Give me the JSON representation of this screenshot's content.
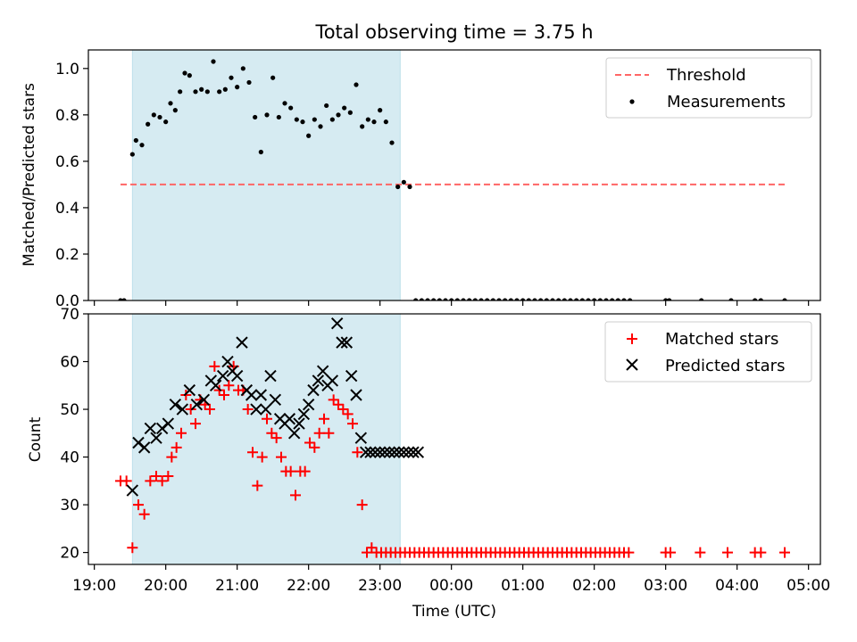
{
  "title": "Total observing time = 3.75 h",
  "chart_data": [
    {
      "type": "scatter",
      "panel": "top",
      "ylabel": "Matched/Predicted stars",
      "ylim": [
        0,
        1.08
      ],
      "yticks": [
        0.0,
        0.2,
        0.4,
        0.6,
        0.8,
        1.0
      ],
      "ytick_labels": [
        "0.0",
        "0.2",
        "0.4",
        "0.6",
        "0.8",
        "1.0"
      ],
      "xlim": [
        "18:55",
        "05:10"
      ],
      "shaded_span": [
        "19:32",
        "23:17"
      ],
      "shade_color": "#add8e6",
      "threshold": {
        "name": "Threshold",
        "value": 0.5,
        "x_start": "19:22",
        "x_end": "04:40",
        "color": "#ff6666"
      },
      "legend": {
        "position": "top-right",
        "entries": [
          "Threshold",
          "Measurements"
        ]
      },
      "series": [
        {
          "name": "Measurements",
          "marker": "dot",
          "color": "#000000",
          "x": [
            "19:22",
            "19:25",
            "19:32",
            "19:35",
            "19:40",
            "19:45",
            "19:50",
            "19:55",
            "20:00",
            "20:04",
            "20:08",
            "20:12",
            "20:16",
            "20:20",
            "20:25",
            "20:30",
            "20:35",
            "20:40",
            "20:45",
            "20:50",
            "20:55",
            "21:00",
            "21:05",
            "21:10",
            "21:15",
            "21:20",
            "21:25",
            "21:30",
            "21:35",
            "21:40",
            "21:45",
            "21:50",
            "21:55",
            "22:00",
            "22:05",
            "22:10",
            "22:15",
            "22:20",
            "22:25",
            "22:30",
            "22:35",
            "22:40",
            "22:45",
            "22:50",
            "22:55",
            "23:00",
            "23:05",
            "23:10",
            "23:15",
            "23:20",
            "23:25",
            "23:30",
            "23:35",
            "23:40",
            "23:45",
            "23:50",
            "23:55",
            "00:00",
            "00:05",
            "00:10",
            "00:15",
            "00:20",
            "00:25",
            "00:30",
            "00:35",
            "00:40",
            "00:45",
            "00:50",
            "00:55",
            "01:00",
            "01:05",
            "01:10",
            "01:15",
            "01:20",
            "01:25",
            "01:30",
            "01:35",
            "01:40",
            "01:45",
            "01:50",
            "01:55",
            "02:00",
            "02:05",
            "02:10",
            "02:15",
            "02:20",
            "02:25",
            "02:30",
            "03:00",
            "03:03",
            "03:30",
            "03:55",
            "04:15",
            "04:20",
            "04:40"
          ],
          "y": [
            0.0,
            0.0,
            0.63,
            0.69,
            0.67,
            0.76,
            0.8,
            0.79,
            0.77,
            0.85,
            0.82,
            0.9,
            0.98,
            0.97,
            0.9,
            0.91,
            0.9,
            1.03,
            0.9,
            0.91,
            0.96,
            0.92,
            1.0,
            0.94,
            0.79,
            0.64,
            0.8,
            0.96,
            0.79,
            0.85,
            0.83,
            0.78,
            0.77,
            0.71,
            0.78,
            0.75,
            0.84,
            0.78,
            0.8,
            0.83,
            0.81,
            0.93,
            0.75,
            0.78,
            0.77,
            0.82,
            0.77,
            0.68,
            0.49,
            0.51,
            0.49,
            0.0,
            0.0,
            0.0,
            0.0,
            0.0,
            0.0,
            0.0,
            0.0,
            0.0,
            0.0,
            0.0,
            0.0,
            0.0,
            0.0,
            0.0,
            0.0,
            0.0,
            0.0,
            0.0,
            0.0,
            0.0,
            0.0,
            0.0,
            0.0,
            0.0,
            0.0,
            0.0,
            0.0,
            0.0,
            0.0,
            0.0,
            0.0,
            0.0,
            0.0,
            0.0,
            0.0,
            0.0,
            0.0,
            0.0,
            0.0,
            0.0,
            0.0,
            0.0,
            0.0
          ]
        }
      ]
    },
    {
      "type": "scatter",
      "panel": "bottom",
      "xlabel": "Time (UTC)",
      "ylabel": "Count",
      "ylim": [
        17.5,
        70
      ],
      "yticks": [
        20,
        30,
        40,
        50,
        60,
        70
      ],
      "ytick_labels": [
        "20",
        "30",
        "40",
        "50",
        "60",
        "70"
      ],
      "xlim": [
        "18:55",
        "05:10"
      ],
      "xticks": [
        "19:00",
        "20:00",
        "21:00",
        "22:00",
        "23:00",
        "00:00",
        "01:00",
        "02:00",
        "03:00",
        "04:00",
        "05:00"
      ],
      "xtick_labels": [
        "19:00",
        "20:00",
        "21:00",
        "22:00",
        "23:00",
        "00:00",
        "01:00",
        "02:00",
        "03:00",
        "04:00",
        "05:00"
      ],
      "shaded_span": [
        "19:32",
        "23:17"
      ],
      "shade_color": "#add8e6",
      "legend": {
        "position": "top-right",
        "entries": [
          "Matched stars",
          "Predicted stars"
        ]
      },
      "series": [
        {
          "name": "Matched stars",
          "marker": "plus",
          "color": "#ff0000",
          "x": [
            "19:22",
            "19:27",
            "19:32",
            "19:37",
            "19:42",
            "19:47",
            "19:52",
            "19:57",
            "20:02",
            "20:05",
            "20:09",
            "20:13",
            "20:17",
            "20:21",
            "20:25",
            "20:29",
            "20:33",
            "20:37",
            "20:41",
            "20:45",
            "20:49",
            "20:53",
            "20:57",
            "21:01",
            "21:05",
            "21:09",
            "21:13",
            "21:17",
            "21:21",
            "21:25",
            "21:29",
            "21:33",
            "21:37",
            "21:41",
            "21:45",
            "21:49",
            "21:53",
            "21:57",
            "22:01",
            "22:05",
            "22:09",
            "22:13",
            "22:17",
            "22:21",
            "22:25",
            "22:29",
            "22:33",
            "22:37",
            "22:41",
            "22:45",
            "22:49",
            "22:53",
            "22:57",
            "23:01",
            "23:05",
            "23:09",
            "23:13",
            "23:17",
            "23:21",
            "23:25",
            "23:29",
            "23:33",
            "23:37",
            "23:41",
            "23:45",
            "23:49",
            "23:53",
            "23:57",
            "00:01",
            "00:05",
            "00:09",
            "00:13",
            "00:17",
            "00:21",
            "00:25",
            "00:29",
            "00:33",
            "00:37",
            "00:41",
            "00:45",
            "00:49",
            "00:53",
            "00:57",
            "01:01",
            "01:05",
            "01:09",
            "01:13",
            "01:17",
            "01:21",
            "01:25",
            "01:29",
            "01:33",
            "01:37",
            "01:41",
            "01:45",
            "01:49",
            "01:53",
            "01:57",
            "02:01",
            "02:05",
            "02:09",
            "02:13",
            "02:17",
            "02:21",
            "02:25",
            "02:29",
            "03:00",
            "03:04",
            "03:29",
            "03:52",
            "04:15",
            "04:20",
            "04:40"
          ],
          "y": [
            35,
            35,
            21,
            30,
            28,
            35,
            36,
            35,
            36,
            40,
            42,
            45,
            53,
            50,
            47,
            52,
            51,
            50,
            59,
            54,
            53,
            55,
            59,
            54,
            54,
            50,
            41,
            34,
            40,
            48,
            45,
            44,
            40,
            37,
            37,
            32,
            37,
            37,
            43,
            42,
            45,
            48,
            45,
            52,
            51,
            50,
            49,
            47,
            41,
            30,
            20,
            21,
            20,
            20,
            20,
            20,
            20,
            20,
            20,
            20,
            20,
            20,
            20,
            20,
            20,
            20,
            20,
            20,
            20,
            20,
            20,
            20,
            20,
            20,
            20,
            20,
            20,
            20,
            20,
            20,
            20,
            20,
            20,
            20,
            20,
            20,
            20,
            20,
            20,
            20,
            20,
            20,
            20,
            20,
            20,
            20,
            20,
            20,
            20,
            20,
            20,
            20,
            20,
            20,
            20,
            20,
            20,
            20,
            20,
            20,
            20,
            20,
            20
          ]
        },
        {
          "name": "Predicted stars",
          "marker": "x",
          "color": "#000000",
          "x": [
            "19:32",
            "19:37",
            "19:42",
            "19:47",
            "19:52",
            "19:57",
            "20:02",
            "20:08",
            "20:14",
            "20:20",
            "20:26",
            "20:32",
            "20:38",
            "20:42",
            "20:48",
            "20:52",
            "20:56",
            "21:00",
            "21:04",
            "21:08",
            "21:12",
            "21:16",
            "21:20",
            "21:24",
            "21:28",
            "21:32",
            "21:36",
            "21:40",
            "21:44",
            "21:48",
            "21:52",
            "21:56",
            "22:00",
            "22:04",
            "22:08",
            "22:12",
            "22:16",
            "22:20",
            "22:24",
            "22:28",
            "22:32",
            "22:36",
            "22:40",
            "22:44",
            "22:48",
            "22:52",
            "22:56",
            "23:00",
            "23:04",
            "23:08",
            "23:12",
            "23:16",
            "23:20",
            "23:24",
            "23:28",
            "23:32"
          ],
          "y": [
            33,
            43,
            42,
            46,
            44,
            46,
            47,
            51,
            50,
            54,
            51,
            52,
            56,
            55,
            57,
            60,
            58,
            57,
            64,
            54,
            53,
            50,
            53,
            50,
            57,
            52,
            48,
            47,
            48,
            45,
            47,
            49,
            51,
            54,
            56,
            58,
            55,
            56,
            68,
            64,
            64,
            57,
            53,
            44,
            41,
            41,
            41,
            41,
            41,
            41,
            41,
            41,
            41,
            41,
            41,
            41
          ]
        }
      ]
    }
  ]
}
